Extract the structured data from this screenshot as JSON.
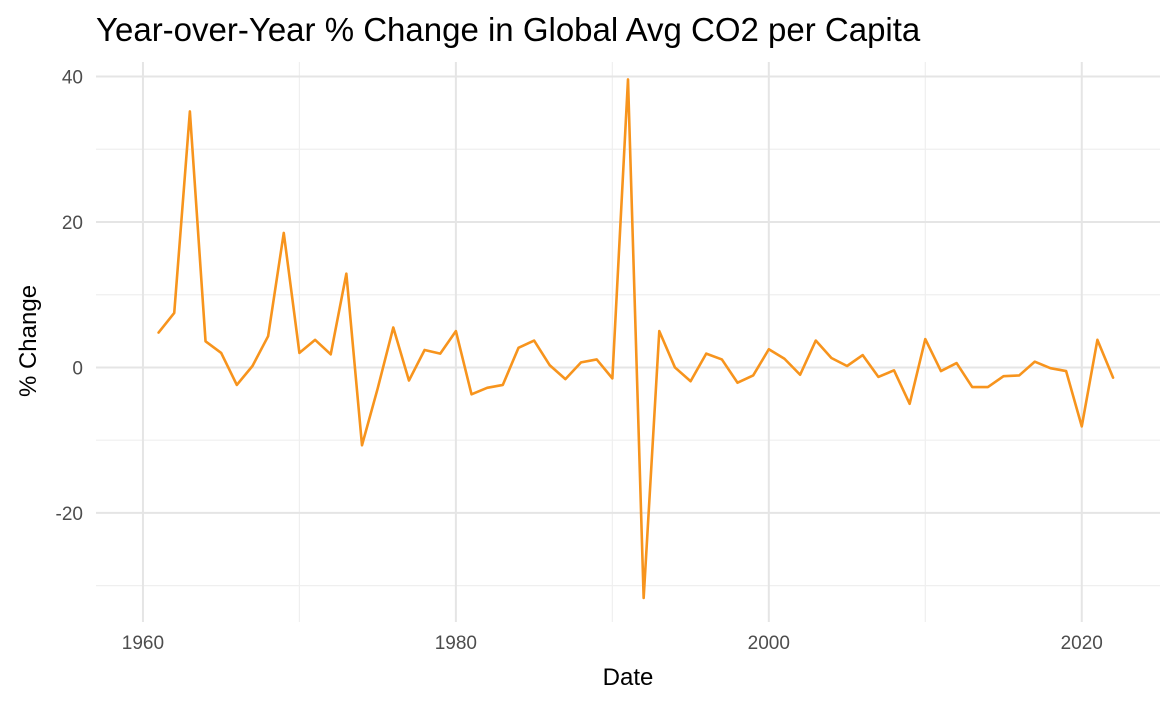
{
  "chart_data": {
    "type": "line",
    "title": "Year-over-Year % Change in Global Avg CO2 per Capita",
    "xlabel": "Date",
    "ylabel": "% Change",
    "xlim": [
      1957,
      2025
    ],
    "ylim": [
      -35,
      42
    ],
    "x_ticks": [
      1960,
      1980,
      2000,
      2020
    ],
    "x_tick_labels": [
      "1960",
      "1980",
      "2000",
      "2020"
    ],
    "x_minor_ticks": [
      1970,
      1990,
      2010
    ],
    "y_ticks": [
      -20,
      0,
      20,
      40
    ],
    "y_tick_labels": [
      "-20",
      "0",
      "20",
      "40"
    ],
    "y_minor_ticks": [
      -30,
      -10,
      10,
      30
    ],
    "grid": true,
    "legend": "none",
    "line_color": "#F7941D",
    "series": [
      {
        "x": [
          1961,
          1962,
          1963,
          1964,
          1965,
          1966,
          1967,
          1968,
          1969,
          1970,
          1971,
          1972,
          1973,
          1974,
          1975,
          1976,
          1977,
          1978,
          1979,
          1980,
          1981,
          1982,
          1983,
          1984,
          1985,
          1986,
          1987,
          1988,
          1989,
          1990,
          1991,
          1992,
          1993,
          1994,
          1995,
          1996,
          1997,
          1998,
          1999,
          2000,
          2001,
          2002,
          2003,
          2004,
          2005,
          2006,
          2007,
          2008,
          2009,
          2010,
          2011,
          2012,
          2013,
          2014,
          2015,
          2016,
          2017,
          2018,
          2019,
          2020,
          2021,
          2022
        ],
        "values": [
          4.8,
          7.5,
          35.2,
          3.6,
          2.0,
          -2.4,
          0.2,
          4.3,
          18.5,
          2.0,
          3.8,
          1.8,
          12.9,
          -10.7,
          -2.9,
          5.5,
          -1.8,
          2.4,
          1.9,
          5.0,
          -3.7,
          -2.8,
          -2.4,
          2.7,
          3.7,
          0.3,
          -1.6,
          0.7,
          1.1,
          -1.5,
          39.6,
          -31.7,
          5.0,
          0.0,
          -1.9,
          1.9,
          1.1,
          -2.1,
          -1.1,
          2.5,
          1.2,
          -1.0,
          3.7,
          1.3,
          0.2,
          1.7,
          -1.3,
          -0.4,
          -5.0,
          3.9,
          -0.5,
          0.6,
          -2.7,
          -2.7,
          -1.2,
          -1.1,
          0.8,
          -0.1,
          -0.5,
          -8.1,
          3.8,
          -1.4
        ]
      }
    ]
  }
}
